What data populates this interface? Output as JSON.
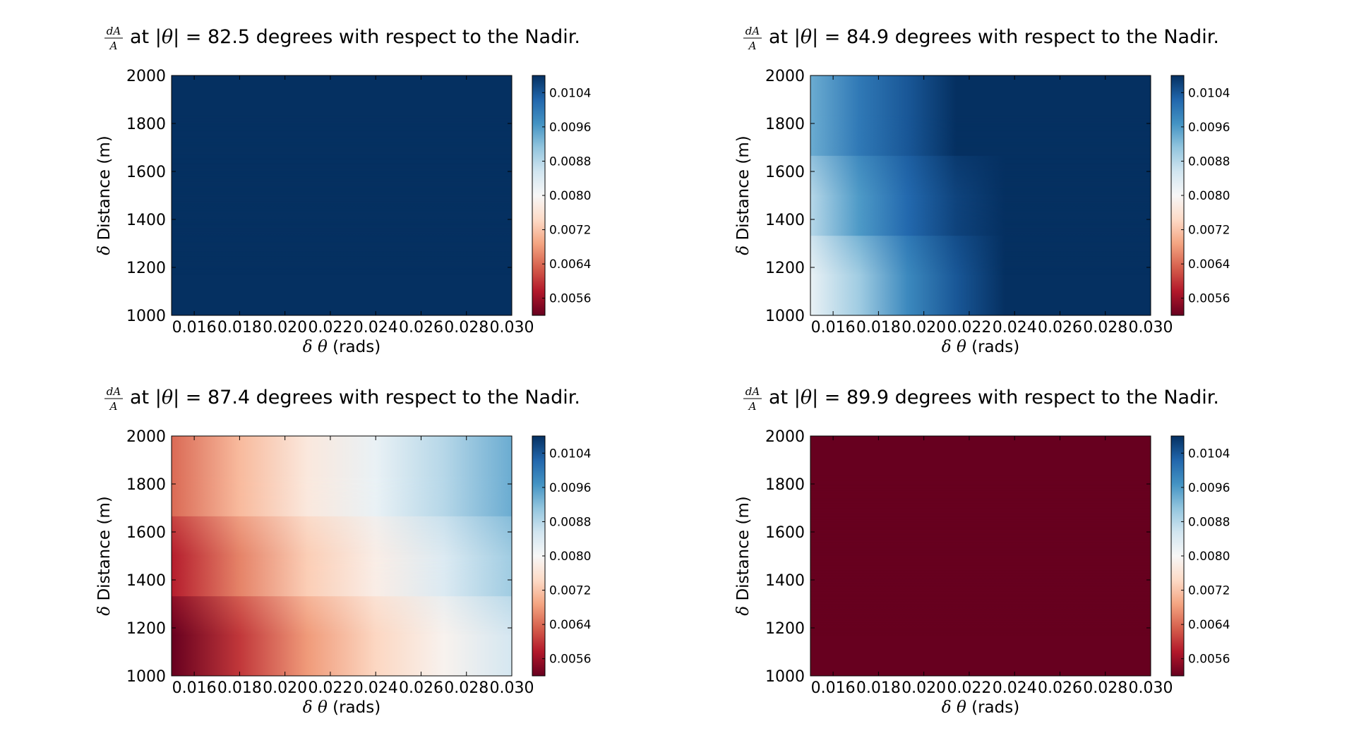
{
  "figure": {
    "colormap": {
      "name": "RdBu",
      "stops": [
        "#67001f",
        "#b2182b",
        "#d6604d",
        "#f4a582",
        "#fddbc7",
        "#f7f7f7",
        "#d1e5f0",
        "#92c5de",
        "#4393c3",
        "#2166ac",
        "#053061"
      ],
      "vmin": 0.0052,
      "vmax": 0.0108
    }
  },
  "chart_data": [
    {
      "type": "heatmap",
      "title": {
        "frac_num": "dA",
        "frac_den": "A",
        "pre": "at |",
        "theta": "θ",
        "post": "| = 82.5 degrees with respect to the Nadir."
      },
      "xlabel": {
        "delta": "δ",
        "sym": "θ",
        "unit": "(rads)"
      },
      "ylabel": {
        "delta": "δ",
        "text": "Distance (m)"
      },
      "xlim": [
        0.015,
        0.03
      ],
      "ylim": [
        1000,
        2000
      ],
      "xticks": [
        "0.016",
        "0.018",
        "0.020",
        "0.022",
        "0.024",
        "0.026",
        "0.028",
        "0.030"
      ],
      "yticks": [
        "1000",
        "1200",
        "1400",
        "1600",
        "1800",
        "2000"
      ],
      "colorbar_ticks": [
        "0.0104",
        "0.0096",
        "0.0088",
        "0.0080",
        "0.0072",
        "0.0064",
        "0.0056"
      ],
      "z_rows_bottom_to_top": [
        [
          0.0108,
          0.0108,
          0.0108,
          0.0108,
          0.0108
        ],
        [
          0.0108,
          0.0108,
          0.0108,
          0.0108,
          0.0108
        ],
        [
          0.0108,
          0.0108,
          0.0108,
          0.0108,
          0.0108
        ]
      ]
    },
    {
      "type": "heatmap",
      "title": {
        "frac_num": "dA",
        "frac_den": "A",
        "pre": "at |",
        "theta": "θ",
        "post": "| = 84.9 degrees with respect to the Nadir."
      },
      "xlabel": {
        "delta": "δ",
        "sym": "θ",
        "unit": "(rads)"
      },
      "ylabel": {
        "delta": "δ",
        "text": "Distance (m)"
      },
      "xlim": [
        0.015,
        0.03
      ],
      "ylim": [
        1000,
        2000
      ],
      "xticks": [
        "0.016",
        "0.018",
        "0.020",
        "0.022",
        "0.024",
        "0.026",
        "0.028",
        "0.030"
      ],
      "yticks": [
        "1000",
        "1200",
        "1400",
        "1600",
        "1800",
        "2000"
      ],
      "colorbar_ticks": [
        "0.0104",
        "0.0096",
        "0.0088",
        "0.0080",
        "0.0072",
        "0.0064",
        "0.0056"
      ],
      "z_rows_bottom_to_top": [
        [
          0.0082,
          0.009,
          0.0098,
          0.0104,
          0.0108,
          0.0108,
          0.0108,
          0.0108
        ],
        [
          0.0088,
          0.0096,
          0.0102,
          0.0106,
          0.0108,
          0.0108,
          0.0108,
          0.0108
        ],
        [
          0.0094,
          0.01,
          0.0104,
          0.0108,
          0.0108,
          0.0108,
          0.0108,
          0.0108
        ]
      ]
    },
    {
      "type": "heatmap",
      "title": {
        "frac_num": "dA",
        "frac_den": "A",
        "pre": "at |",
        "theta": "θ",
        "post": "| = 87.4 degrees with respect to the Nadir."
      },
      "xlabel": {
        "delta": "δ",
        "sym": "θ",
        "unit": "(rads)"
      },
      "ylabel": {
        "delta": "δ",
        "text": "Distance (m)"
      },
      "xlim": [
        0.015,
        0.03
      ],
      "ylim": [
        1000,
        2000
      ],
      "xticks": [
        "0.016",
        "0.018",
        "0.020",
        "0.022",
        "0.024",
        "0.026",
        "0.028",
        "0.030"
      ],
      "yticks": [
        "1000",
        "1200",
        "1400",
        "1600",
        "1800",
        "2000"
      ],
      "colorbar_ticks": [
        "0.0104",
        "0.0096",
        "0.0088",
        "0.0080",
        "0.0072",
        "0.0064",
        "0.0056"
      ],
      "z_rows_bottom_to_top": [
        [
          0.0052,
          0.006,
          0.0068,
          0.0074,
          0.0079,
          0.0085
        ],
        [
          0.0058,
          0.0066,
          0.0073,
          0.0078,
          0.0084,
          0.009
        ],
        [
          0.0064,
          0.0071,
          0.0077,
          0.0082,
          0.0088,
          0.0094
        ]
      ]
    },
    {
      "type": "heatmap",
      "title": {
        "frac_num": "dA",
        "frac_den": "A",
        "pre": "at |",
        "theta": "θ",
        "post": "| = 89.9 degrees with respect to the Nadir."
      },
      "xlabel": {
        "delta": "δ",
        "sym": "θ",
        "unit": "(rads)"
      },
      "ylabel": {
        "delta": "δ",
        "text": "Distance (m)"
      },
      "xlim": [
        0.015,
        0.03
      ],
      "ylim": [
        1000,
        2000
      ],
      "xticks": [
        "0.016",
        "0.018",
        "0.020",
        "0.022",
        "0.024",
        "0.026",
        "0.028",
        "0.030"
      ],
      "yticks": [
        "1000",
        "1200",
        "1400",
        "1600",
        "1800",
        "2000"
      ],
      "colorbar_ticks": [
        "0.0104",
        "0.0096",
        "0.0088",
        "0.0080",
        "0.0072",
        "0.0064",
        "0.0056"
      ],
      "z_rows_bottom_to_top": [
        [
          0.0052,
          0.0052,
          0.0052,
          0.0052,
          0.0052
        ],
        [
          0.0052,
          0.0052,
          0.0052,
          0.0052,
          0.0052
        ],
        [
          0.0052,
          0.0052,
          0.0052,
          0.0052,
          0.0052
        ]
      ]
    }
  ]
}
